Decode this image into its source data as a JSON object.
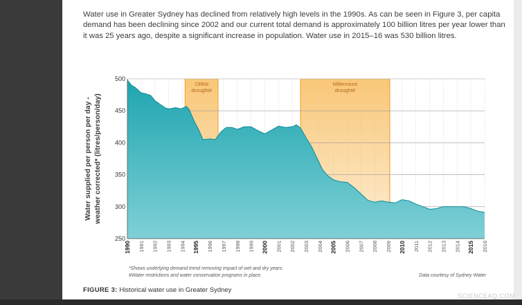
{
  "intro_text": "Water use in Greater Sydney has declined from relatively high levels in the 1990s. As can be seen in Figure 3, per capita demand has been declining since 2002 and our current total demand is approximately 100 billion litres per year lower than it was 25 years ago, despite a significant increase in population. Water use in 2015–16 was 530 billion litres.",
  "caption": {
    "label": "FIGURE 3:",
    "text": "Historical water use in Greater Sydney"
  },
  "watermark": "SCIENCEAQ.COM",
  "chart_data": {
    "type": "area",
    "ylabel_line1": "Water supplied per person per day -",
    "ylabel_line2": "weather corrected* (litres/person/day)",
    "ylim": [
      250,
      500
    ],
    "yticks": [
      250,
      300,
      350,
      400,
      450,
      500
    ],
    "xlim": [
      1990,
      2016
    ],
    "xticks": [
      "1990",
      "1991",
      "1992",
      "1993",
      "1994",
      "1995",
      "1996",
      "1997",
      "1998",
      "1999",
      "2000",
      "2001",
      "2002",
      "2003",
      "2004",
      "2005",
      "2006",
      "2007",
      "2008",
      "2009",
      "2010",
      "2011",
      "2012",
      "2013",
      "2014",
      "2015",
      "2016"
    ],
    "bold_xticks": [
      "1990",
      "1995",
      "2000",
      "2005",
      "2010",
      "2015"
    ],
    "grid": true,
    "fill_color": "#1fa5b0",
    "band_color": "#f8bd5e",
    "droughts": [
      {
        "line1": "1990s",
        "line2": "drought#",
        "start": 1994.2,
        "end": 1996.6
      },
      {
        "line1": "Millennium",
        "line2": "drought#",
        "start": 2002.6,
        "end": 2009.1
      }
    ],
    "series": [
      {
        "x": [
          1990,
          1990.3,
          1990.6,
          1991,
          1991.3,
          1991.7,
          1992,
          1992.4,
          1992.8,
          1993.1,
          1993.5,
          1993.9,
          1994.3,
          1994.5,
          1994.9,
          1995.2,
          1995.5,
          1996,
          1996.4,
          1996.8,
          1997.2,
          1997.6,
          1998,
          1998.5,
          1999,
          1999.5,
          2000,
          2000.5,
          2001,
          2001.5,
          2002,
          2002.3,
          2002.6,
          2003,
          2003.4,
          2003.8,
          2004.2,
          2004.6,
          2005,
          2005.5,
          2006,
          2006.5,
          2007,
          2007.5,
          2008,
          2008.5,
          2009,
          2009.5,
          2010,
          2010.5,
          2011,
          2011.5,
          2012,
          2012.5,
          2013,
          2013.5,
          2014,
          2014.5,
          2015,
          2015.5,
          2016
        ],
        "values": [
          498,
          490,
          486,
          478,
          477,
          474,
          466,
          460,
          454,
          453,
          455,
          453,
          457,
          452,
          432,
          420,
          405,
          406,
          405,
          417,
          424,
          424,
          421,
          425,
          425,
          419,
          414,
          420,
          426,
          424,
          425,
          428,
          423,
          408,
          394,
          376,
          358,
          348,
          342,
          339,
          338,
          330,
          320,
          310,
          307,
          309,
          307,
          306,
          311,
          309,
          304,
          300,
          296,
          297,
          300,
          300,
          300,
          300,
          297,
          293,
          291
        ]
      }
    ],
    "footnote1": "*Shows underlying demand trend removing impact of wet and dry years.",
    "footnote2": "#Water restrictions and water conservation programs in place.",
    "source": "Data courtesy of Sydney Water"
  }
}
